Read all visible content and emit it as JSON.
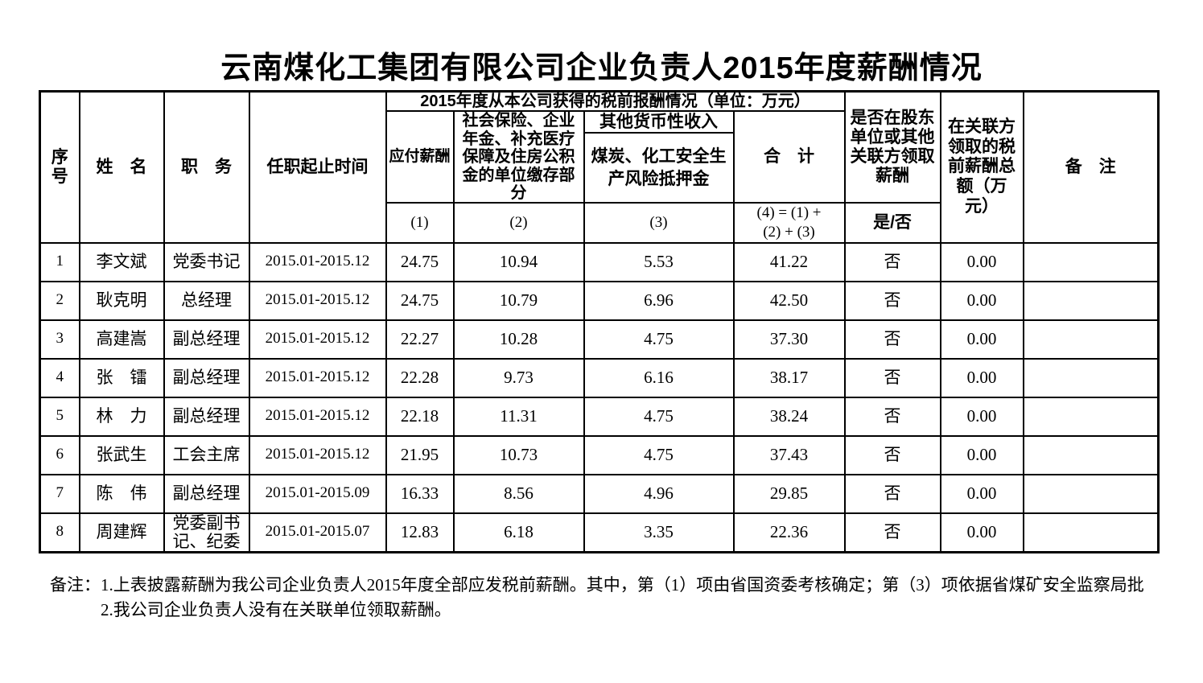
{
  "page": {
    "title": "云南煤化工集团有限公司企业负责人2015年度薪酬情况"
  },
  "table": {
    "header": {
      "seq": "序号",
      "name": "姓　名",
      "position": "职　务",
      "tenure": "任职起止时间",
      "pretax_group": "2015年度从本公司获得的税前报酬情况（单位：万元）",
      "payable": "应付薪酬",
      "social_insurance": "社会保险、企业年金、补充医疗保障及住房公积金的单位缴存部分",
      "other_monetary_income": "其他货币性收入",
      "risk_deposit": "煤炭、化工安全生产风险抵押金",
      "total": "合　计",
      "related_party_question": "是否在股东单位或其他关联方领取薪酬",
      "related_party_amount": "在关联方领取的税前薪酬总额（万元）",
      "remark": "备　注",
      "col1": "(1)",
      "col2": "(2)",
      "col3": "(3)",
      "col4_formula": "(4) = (1) +\n(2) + (3)",
      "yes_no": "是/否"
    },
    "rows": [
      {
        "seq": "1",
        "name": "李文斌",
        "position": "党委书记",
        "tenure": "2015.01-2015.12",
        "payable": "24.75",
        "social": "10.94",
        "deposit": "5.53",
        "total": "41.22",
        "yes_no": "否",
        "related_amount": "0.00",
        "remark": ""
      },
      {
        "seq": "2",
        "name": "耿克明",
        "position": "总经理",
        "tenure": "2015.01-2015.12",
        "payable": "24.75",
        "social": "10.79",
        "deposit": "6.96",
        "total": "42.50",
        "yes_no": "否",
        "related_amount": "0.00",
        "remark": ""
      },
      {
        "seq": "3",
        "name": "高建嵩",
        "position": "副总经理",
        "tenure": "2015.01-2015.12",
        "payable": "22.27",
        "social": "10.28",
        "deposit": "4.75",
        "total": "37.30",
        "yes_no": "否",
        "related_amount": "0.00",
        "remark": ""
      },
      {
        "seq": "4",
        "name": "张　镭",
        "position": "副总经理",
        "tenure": "2015.01-2015.12",
        "payable": "22.28",
        "social": "9.73",
        "deposit": "6.16",
        "total": "38.17",
        "yes_no": "否",
        "related_amount": "0.00",
        "remark": ""
      },
      {
        "seq": "5",
        "name": "林　力",
        "position": "副总经理",
        "tenure": "2015.01-2015.12",
        "payable": "22.18",
        "social": "11.31",
        "deposit": "4.75",
        "total": "38.24",
        "yes_no": "否",
        "related_amount": "0.00",
        "remark": ""
      },
      {
        "seq": "6",
        "name": "张武生",
        "position": "工会主席",
        "tenure": "2015.01-2015.12",
        "payable": "21.95",
        "social": "10.73",
        "deposit": "4.75",
        "total": "37.43",
        "yes_no": "否",
        "related_amount": "0.00",
        "remark": ""
      },
      {
        "seq": "7",
        "name": "陈　伟",
        "position": "副总经理",
        "tenure": "2015.01-2015.09",
        "payable": "16.33",
        "social": "8.56",
        "deposit": "4.96",
        "total": "29.85",
        "yes_no": "否",
        "related_amount": "0.00",
        "remark": ""
      },
      {
        "seq": "8",
        "name": "周建辉",
        "position": "党委副书记、纪委",
        "tenure": "2015.01-2015.07",
        "payable": "12.83",
        "social": "6.18",
        "deposit": "3.35",
        "total": "22.36",
        "yes_no": "否",
        "related_amount": "0.00",
        "remark": ""
      }
    ]
  },
  "notes": {
    "label": "备注：",
    "line1": "1.上表披露薪酬为我公司企业负责人2015年度全部应发税前薪酬。其中，第（1）项由省国资委考核确定；第（3）项依据省煤矿安全监察局批",
    "line2": "2.我公司企业负责人没有在关联单位领取薪酬。"
  },
  "colors": {
    "background": "#ffffff",
    "text": "#000000",
    "border": "#000000"
  }
}
